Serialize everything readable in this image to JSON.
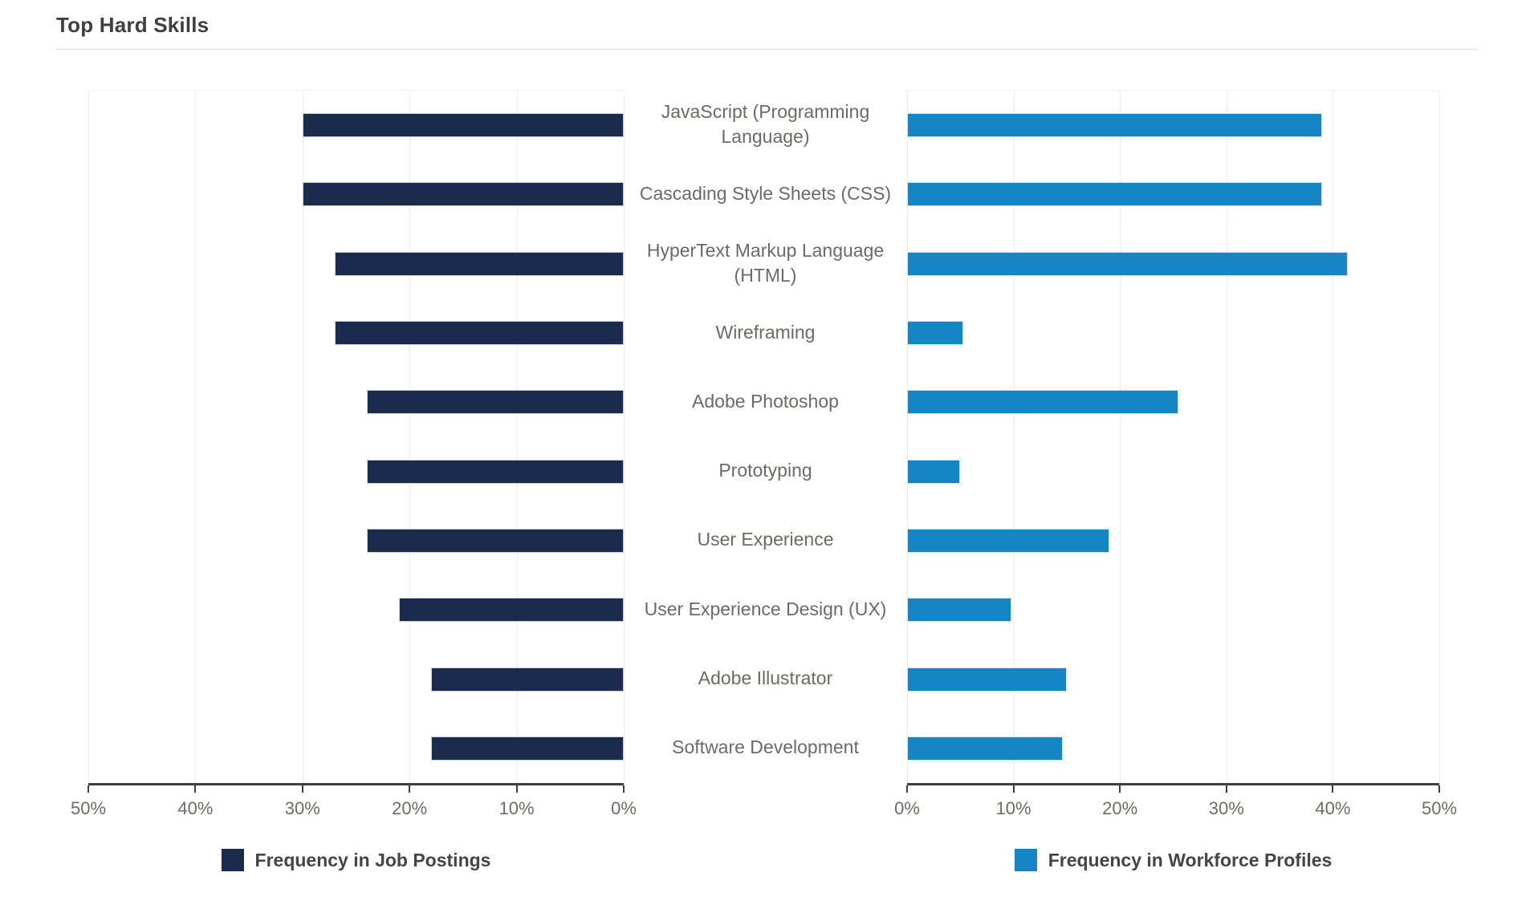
{
  "page": {
    "title": "Top Hard Skills"
  },
  "chart_data": {
    "type": "bar",
    "variant": "diverging-horizontal (butterfly / tornado)",
    "title": "Top Hard Skills",
    "categories": [
      "JavaScript (Programming Language)",
      "Cascading Style Sheets (CSS)",
      "HyperText Markup Language (HTML)",
      "Wireframing",
      "Adobe Photoshop",
      "Prototyping",
      "User Experience",
      "User Experience Design (UX)",
      "Adobe Illustrator",
      "Software Development"
    ],
    "series": [
      {
        "name": "Frequency in Job Postings",
        "side": "left",
        "color": "#1b2b4d",
        "values": [
          30,
          30,
          27,
          27,
          24,
          24,
          24,
          21,
          18,
          18
        ]
      },
      {
        "name": "Frequency in Workforce Profiles",
        "side": "right",
        "color": "#1585c5",
        "values": [
          39,
          39,
          41.4,
          5.3,
          25.5,
          5,
          19,
          9.8,
          15,
          14.6
        ]
      }
    ],
    "axis": {
      "min": 0,
      "max": 50,
      "tick_step": 10,
      "unit": "%",
      "left_axis_ticks": [
        "50%",
        "40%",
        "30%",
        "20%",
        "10%",
        "0%"
      ],
      "right_axis_ticks": [
        "0%",
        "10%",
        "20%",
        "30%",
        "40%",
        "50%"
      ]
    },
    "grid": true,
    "legend_position": "bottom"
  },
  "colors": {
    "job_postings_bar": "#1b2b4d",
    "workforce_profiles_bar": "#1585c5",
    "axis_line": "#3f3f3f",
    "gridline": "#ebebf0",
    "tick_label_text": "#6f6b66",
    "category_text": "#6d6a66",
    "title_text": "#3f3f3f"
  }
}
